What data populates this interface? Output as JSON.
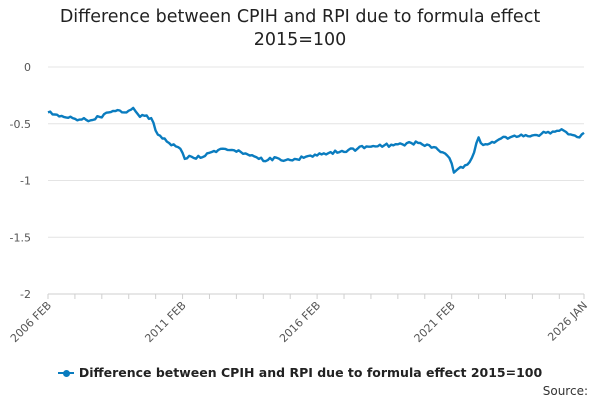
{
  "chart_data": {
    "type": "line",
    "title": "Difference between CPIH and RPI due to formula effect",
    "subtitle": "2015=100",
    "xlabel": "",
    "ylabel": "",
    "x_start": "2006 FEB",
    "x_end": "2026 JAN",
    "x_ticks": [
      "2006 FEB",
      "2011 FEB",
      "2016 FEB",
      "2021 FEB",
      "2026 JAN"
    ],
    "ylim": [
      -2,
      0
    ],
    "y_ticks": [
      0,
      -0.5,
      -1,
      -1.5,
      -2
    ],
    "y_tick_labels": [
      "0",
      "-0.5",
      "-1",
      "-1.5",
      "-2"
    ],
    "grid": true,
    "legend_position": "bottom",
    "series": [
      {
        "name": "Difference between CPIH and RPI due to formula effect 2015=100",
        "color": "#0a7cbf",
        "frequency": "monthly",
        "x": [
          "2006-02",
          "2006-06",
          "2006-09",
          "2007-01",
          "2007-03",
          "2007-06",
          "2007-09",
          "2008-01",
          "2008-05",
          "2008-09",
          "2008-12",
          "2009-04",
          "2009-07",
          "2009-09",
          "2009-12",
          "2010-02",
          "2010-05",
          "2010-08",
          "2010-11",
          "2011-01",
          "2011-03",
          "2011-06",
          "2011-10",
          "2012-01",
          "2012-04",
          "2012-08",
          "2012-12",
          "2013-04",
          "2013-08",
          "2013-12",
          "2014-04",
          "2014-08",
          "2014-12",
          "2015-04",
          "2015-08",
          "2015-12",
          "2016-04",
          "2016-08",
          "2016-12",
          "2017-04",
          "2017-08",
          "2017-12",
          "2018-04",
          "2018-08",
          "2018-12",
          "2019-04",
          "2019-08",
          "2019-12",
          "2020-04",
          "2020-08",
          "2020-12",
          "2021-02",
          "2021-03",
          "2021-06",
          "2021-09",
          "2021-11",
          "2022-02",
          "2022-03",
          "2022-05",
          "2022-08",
          "2022-12",
          "2023-04",
          "2023-08",
          "2023-12",
          "2024-04",
          "2024-08",
          "2024-12",
          "2025-04",
          "2025-08",
          "2025-11",
          "2026-01"
        ],
        "values": [
          -0.4,
          -0.42,
          -0.44,
          -0.45,
          -0.47,
          -0.45,
          -0.47,
          -0.44,
          -0.4,
          -0.38,
          -0.4,
          -0.36,
          -0.44,
          -0.43,
          -0.45,
          -0.56,
          -0.63,
          -0.67,
          -0.7,
          -0.72,
          -0.81,
          -0.79,
          -0.8,
          -0.76,
          -0.74,
          -0.72,
          -0.73,
          -0.75,
          -0.78,
          -0.81,
          -0.82,
          -0.8,
          -0.82,
          -0.81,
          -0.8,
          -0.79,
          -0.77,
          -0.75,
          -0.75,
          -0.73,
          -0.72,
          -0.7,
          -0.7,
          -0.69,
          -0.69,
          -0.68,
          -0.67,
          -0.67,
          -0.69,
          -0.73,
          -0.78,
          -0.85,
          -0.93,
          -0.88,
          -0.86,
          -0.8,
          -0.62,
          -0.67,
          -0.68,
          -0.66,
          -0.63,
          -0.62,
          -0.61,
          -0.61,
          -0.6,
          -0.58,
          -0.57,
          -0.56,
          -0.6,
          -0.62,
          -0.58
        ]
      }
    ]
  },
  "source_label": "Source:"
}
